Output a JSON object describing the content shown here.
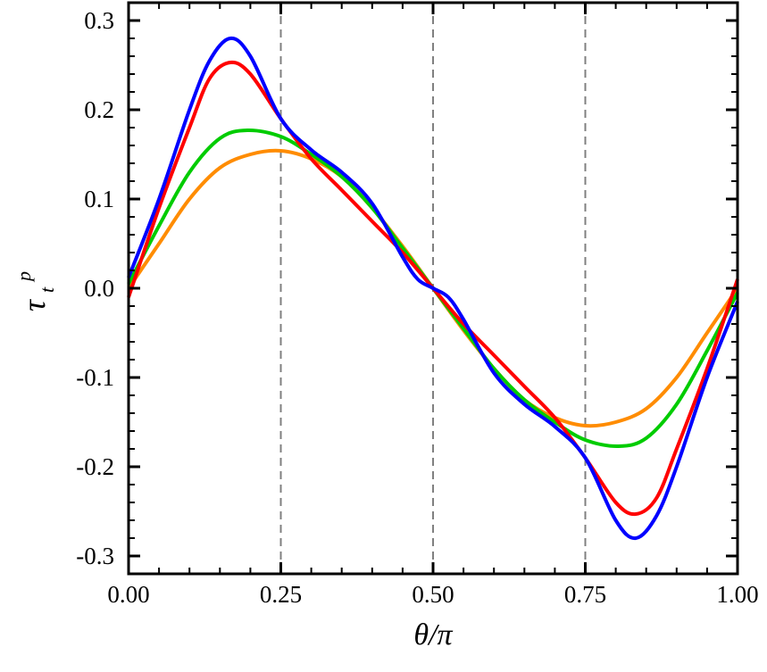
{
  "chart_data": {
    "type": "line",
    "title": "",
    "xlabel": "θ/π",
    "ylabel": "τ",
    "ylabel_sub": "t",
    "ylabel_sup": "p",
    "xlim": [
      0,
      1
    ],
    "ylim": [
      -0.32,
      0.32
    ],
    "xticks": [
      0,
      0.25,
      0.5,
      0.75,
      1
    ],
    "xtick_labels": [
      "0.00",
      "0.25",
      "0.50",
      "0.75",
      "1.00"
    ],
    "yticks": [
      -0.3,
      -0.2,
      -0.1,
      0,
      0.1,
      0.2,
      0.3
    ],
    "ytick_labels": [
      "-0.3",
      "-0.2",
      "-0.1",
      "0.0",
      "0.1",
      "0.2",
      "0.3"
    ],
    "x_minor_step": 0.05,
    "y_minor_step": 0.02,
    "grid": false,
    "vlines": [
      0.25,
      0.5,
      0.75
    ],
    "vline_color": "#808080",
    "series": [
      {
        "color": "#ff8c00",
        "points": [
          [
            0,
            0
          ],
          [
            0.05,
            0.05
          ],
          [
            0.1,
            0.1
          ],
          [
            0.15,
            0.135
          ],
          [
            0.2,
            0.15
          ],
          [
            0.25,
            0.154
          ],
          [
            0.3,
            0.145
          ],
          [
            0.35,
            0.125
          ],
          [
            0.4,
            0.09
          ],
          [
            0.45,
            0.047
          ],
          [
            0.5,
            0
          ],
          [
            0.55,
            -0.047
          ],
          [
            0.6,
            -0.09
          ],
          [
            0.65,
            -0.125
          ],
          [
            0.7,
            -0.145
          ],
          [
            0.75,
            -0.154
          ],
          [
            0.8,
            -0.15
          ],
          [
            0.85,
            -0.135
          ],
          [
            0.9,
            -0.1
          ],
          [
            0.95,
            -0.05
          ],
          [
            1,
            0
          ]
        ]
      },
      {
        "color": "#00cc00",
        "points": [
          [
            0,
            0.005
          ],
          [
            0.05,
            0.07
          ],
          [
            0.1,
            0.13
          ],
          [
            0.15,
            0.168
          ],
          [
            0.195,
            0.177
          ],
          [
            0.25,
            0.17
          ],
          [
            0.3,
            0.15
          ],
          [
            0.35,
            0.125
          ],
          [
            0.4,
            0.09
          ],
          [
            0.45,
            0.045
          ],
          [
            0.5,
            0
          ],
          [
            0.55,
            -0.045
          ],
          [
            0.6,
            -0.09
          ],
          [
            0.65,
            -0.125
          ],
          [
            0.7,
            -0.15
          ],
          [
            0.75,
            -0.17
          ],
          [
            0.805,
            -0.177
          ],
          [
            0.85,
            -0.168
          ],
          [
            0.9,
            -0.13
          ],
          [
            0.95,
            -0.07
          ],
          [
            1,
            -0.005
          ]
        ]
      },
      {
        "color": "#ff0000",
        "points": [
          [
            0,
            -0.01
          ],
          [
            0.05,
            0.09
          ],
          [
            0.1,
            0.18
          ],
          [
            0.133,
            0.235
          ],
          [
            0.167,
            0.253
          ],
          [
            0.2,
            0.24
          ],
          [
            0.25,
            0.19
          ],
          [
            0.3,
            0.145
          ],
          [
            0.35,
            0.11
          ],
          [
            0.4,
            0.075
          ],
          [
            0.45,
            0.04
          ],
          [
            0.5,
            0
          ],
          [
            0.55,
            -0.04
          ],
          [
            0.6,
            -0.075
          ],
          [
            0.65,
            -0.11
          ],
          [
            0.7,
            -0.145
          ],
          [
            0.75,
            -0.19
          ],
          [
            0.8,
            -0.24
          ],
          [
            0.833,
            -0.253
          ],
          [
            0.867,
            -0.235
          ],
          [
            0.9,
            -0.18
          ],
          [
            0.95,
            -0.09
          ],
          [
            1,
            0.01
          ]
        ]
      },
      {
        "color": "#0000ff",
        "points": [
          [
            0,
            0.012
          ],
          [
            0.05,
            0.1
          ],
          [
            0.1,
            0.2
          ],
          [
            0.133,
            0.255
          ],
          [
            0.167,
            0.28
          ],
          [
            0.2,
            0.26
          ],
          [
            0.25,
            0.19
          ],
          [
            0.3,
            0.155
          ],
          [
            0.35,
            0.13
          ],
          [
            0.4,
            0.095
          ],
          [
            0.45,
            0.035
          ],
          [
            0.475,
            0.01
          ],
          [
            0.5,
            0
          ],
          [
            0.525,
            -0.01
          ],
          [
            0.55,
            -0.035
          ],
          [
            0.6,
            -0.095
          ],
          [
            0.65,
            -0.13
          ],
          [
            0.7,
            -0.155
          ],
          [
            0.75,
            -0.19
          ],
          [
            0.8,
            -0.26
          ],
          [
            0.833,
            -0.28
          ],
          [
            0.867,
            -0.255
          ],
          [
            0.9,
            -0.2
          ],
          [
            0.95,
            -0.1
          ],
          [
            1,
            -0.015
          ]
        ]
      }
    ]
  }
}
